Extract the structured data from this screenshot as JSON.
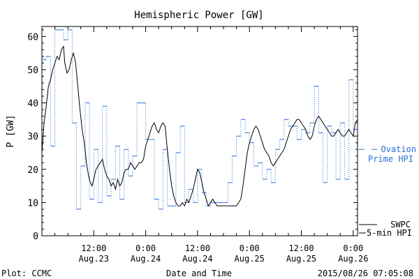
{
  "chart_data": {
    "type": "line",
    "title": "Hemispheric Power [GW]",
    "xlabel": "Date and Time",
    "ylabel": "P [GW]",
    "ylim": [
      0,
      63
    ],
    "xlim": [
      0,
      73
    ],
    "x_unit": "hours since 2015-08-23 00:00 UT",
    "y_ticks": [
      0,
      10,
      20,
      30,
      40,
      50,
      60
    ],
    "x_ticks": [
      {
        "x": 12,
        "time": "12:00",
        "date": "Aug.23"
      },
      {
        "x": 24,
        "time": "0:00",
        "date": "Aug.24"
      },
      {
        "x": 36,
        "time": "12:00",
        "date": "Aug.24"
      },
      {
        "x": 48,
        "time": "0:00",
        "date": "Aug.25"
      },
      {
        "x": 60,
        "time": "12:00",
        "date": "Aug.25"
      },
      {
        "x": 72,
        "time": "0:00",
        "date": "Aug.26"
      }
    ],
    "grid": false,
    "legend_position": "right",
    "series": [
      {
        "name": "SWPC 5-min HPI",
        "label_lines": [
          "SWPC",
          "5-min HPI"
        ],
        "color": "#000000",
        "style": "solid",
        "points": [
          [
            0,
            25
          ],
          [
            0.5,
            34
          ],
          [
            1,
            39
          ],
          [
            1.5,
            45
          ],
          [
            2,
            47
          ],
          [
            2.5,
            50
          ],
          [
            3,
            52
          ],
          [
            3.5,
            54
          ],
          [
            4,
            53
          ],
          [
            4.5,
            56
          ],
          [
            5,
            57
          ],
          [
            5.3,
            52
          ],
          [
            5.8,
            49
          ],
          [
            6.3,
            50
          ],
          [
            6.8,
            53
          ],
          [
            7.3,
            55
          ],
          [
            7.8,
            52
          ],
          [
            8.3,
            45
          ],
          [
            8.8,
            38
          ],
          [
            9.3,
            32
          ],
          [
            9.8,
            28
          ],
          [
            10.3,
            22
          ],
          [
            10.8,
            18
          ],
          [
            11.2,
            16
          ],
          [
            11.6,
            15
          ],
          [
            12,
            17
          ],
          [
            12.5,
            20
          ],
          [
            13,
            21
          ],
          [
            13.5,
            22
          ],
          [
            14,
            23
          ],
          [
            14.5,
            20
          ],
          [
            15,
            18
          ],
          [
            15.5,
            17
          ],
          [
            16,
            15
          ],
          [
            16.5,
            16
          ],
          [
            17,
            14
          ],
          [
            17.5,
            17
          ],
          [
            18,
            15
          ],
          [
            18.5,
            16
          ],
          [
            19,
            19
          ],
          [
            19.5,
            20
          ],
          [
            20,
            20
          ],
          [
            20.5,
            22
          ],
          [
            21,
            21
          ],
          [
            21.5,
            20
          ],
          [
            22,
            21
          ],
          [
            22.5,
            22
          ],
          [
            23,
            22
          ],
          [
            23.5,
            23
          ],
          [
            24,
            27
          ],
          [
            24.5,
            29
          ],
          [
            25,
            31
          ],
          [
            25.5,
            33
          ],
          [
            26,
            34
          ],
          [
            26.5,
            32
          ],
          [
            27,
            31
          ],
          [
            27.5,
            33
          ],
          [
            28,
            34
          ],
          [
            28.5,
            33
          ],
          [
            29,
            26
          ],
          [
            29.5,
            20
          ],
          [
            30,
            15
          ],
          [
            30.5,
            12
          ],
          [
            31,
            10
          ],
          [
            31.5,
            9
          ],
          [
            32,
            9
          ],
          [
            32.5,
            10
          ],
          [
            33,
            9
          ],
          [
            33.5,
            11
          ],
          [
            34,
            10
          ],
          [
            34.5,
            12
          ],
          [
            35,
            14
          ],
          [
            35.5,
            17
          ],
          [
            36,
            20
          ],
          [
            36.5,
            19
          ],
          [
            37,
            16
          ],
          [
            37.5,
            13
          ],
          [
            38,
            11
          ],
          [
            38.5,
            9
          ],
          [
            39,
            10
          ],
          [
            39.5,
            11
          ],
          [
            40,
            10
          ],
          [
            40.5,
            9
          ],
          [
            41,
            9
          ],
          [
            41.5,
            9
          ],
          [
            42,
            9
          ],
          [
            42.5,
            9
          ],
          [
            43,
            9
          ],
          [
            43.5,
            9
          ],
          [
            44,
            9
          ],
          [
            44.5,
            9
          ],
          [
            45,
            9
          ],
          [
            45.5,
            10
          ],
          [
            46,
            11
          ],
          [
            46.5,
            15
          ],
          [
            47,
            20
          ],
          [
            47.5,
            25
          ],
          [
            48,
            28
          ],
          [
            48.5,
            30
          ],
          [
            49,
            32
          ],
          [
            49.5,
            33
          ],
          [
            50,
            32
          ],
          [
            50.5,
            30
          ],
          [
            51,
            28
          ],
          [
            51.5,
            26
          ],
          [
            52,
            25
          ],
          [
            52.5,
            24
          ],
          [
            53,
            22
          ],
          [
            53.5,
            21
          ],
          [
            54,
            22
          ],
          [
            54.5,
            23
          ],
          [
            55,
            24
          ],
          [
            55.5,
            25
          ],
          [
            56,
            26
          ],
          [
            56.5,
            28
          ],
          [
            57,
            30
          ],
          [
            57.5,
            32
          ],
          [
            58,
            33
          ],
          [
            58.5,
            34
          ],
          [
            59,
            35
          ],
          [
            59.5,
            35
          ],
          [
            60,
            34
          ],
          [
            60.5,
            33
          ],
          [
            61,
            32
          ],
          [
            61.5,
            30
          ],
          [
            62,
            29
          ],
          [
            62.5,
            30
          ],
          [
            63,
            33
          ],
          [
            63.5,
            35
          ],
          [
            64,
            36
          ],
          [
            64.5,
            35
          ],
          [
            65,
            34
          ],
          [
            65.5,
            33
          ],
          [
            66,
            32
          ],
          [
            66.5,
            31
          ],
          [
            67,
            30
          ],
          [
            67.5,
            30
          ],
          [
            68,
            31
          ],
          [
            68.5,
            32
          ],
          [
            69,
            31
          ],
          [
            69.5,
            30
          ],
          [
            70,
            30
          ],
          [
            70.5,
            31
          ],
          [
            71,
            32
          ],
          [
            71.5,
            31
          ],
          [
            72,
            30
          ],
          [
            72.5,
            34
          ],
          [
            73,
            35
          ]
        ]
      },
      {
        "name": "Ovation Prime HPI",
        "label_lines": [
          "Ovation",
          "Prime HPI"
        ],
        "color": "#2a6fd6",
        "style": "dotted-step",
        "points": [
          [
            0,
            53
          ],
          [
            1,
            54
          ],
          [
            2,
            27
          ],
          [
            3,
            62
          ],
          [
            4,
            62
          ],
          [
            5,
            59
          ],
          [
            6,
            62
          ],
          [
            7,
            34
          ],
          [
            8,
            8
          ],
          [
            9,
            21
          ],
          [
            10,
            40
          ],
          [
            11,
            11
          ],
          [
            12,
            26
          ],
          [
            13,
            10
          ],
          [
            14,
            39
          ],
          [
            15,
            12
          ],
          [
            16,
            17
          ],
          [
            17,
            27
          ],
          [
            18,
            11
          ],
          [
            19,
            26
          ],
          [
            20,
            18
          ],
          [
            21,
            24
          ],
          [
            22,
            40
          ],
          [
            23,
            40
          ],
          [
            24,
            29
          ],
          [
            25,
            29
          ],
          [
            26,
            11
          ],
          [
            27,
            8
          ],
          [
            28,
            26
          ],
          [
            29,
            9
          ],
          [
            30,
            9
          ],
          [
            31,
            25
          ],
          [
            32,
            33
          ],
          [
            33,
            10
          ],
          [
            34,
            14
          ],
          [
            35,
            10
          ],
          [
            36,
            20
          ],
          [
            37,
            13
          ],
          [
            38,
            9
          ],
          [
            39,
            10
          ],
          [
            40,
            10
          ],
          [
            41,
            10
          ],
          [
            42,
            10
          ],
          [
            43,
            16
          ],
          [
            44,
            24
          ],
          [
            45,
            30
          ],
          [
            46,
            35
          ],
          [
            47,
            31
          ],
          [
            48,
            28
          ],
          [
            49,
            21
          ],
          [
            50,
            22
          ],
          [
            51,
            17
          ],
          [
            52,
            20
          ],
          [
            53,
            16
          ],
          [
            54,
            26
          ],
          [
            55,
            29
          ],
          [
            56,
            35
          ],
          [
            57,
            33
          ],
          [
            58,
            33
          ],
          [
            59,
            29
          ],
          [
            60,
            32
          ],
          [
            61,
            31
          ],
          [
            62,
            34
          ],
          [
            63,
            45
          ],
          [
            64,
            31
          ],
          [
            65,
            16
          ],
          [
            66,
            33
          ],
          [
            67,
            31
          ],
          [
            68,
            17
          ],
          [
            69,
            34
          ],
          [
            70,
            17
          ],
          [
            71,
            47
          ],
          [
            72,
            32
          ],
          [
            73,
            32
          ]
        ]
      }
    ]
  },
  "footer": {
    "left": "Plot: CCMC",
    "right": "2015/08/26 07:05:08"
  },
  "colors": {
    "axis": "#000000",
    "ovation": "#2a6fd6",
    "swpc": "#000000"
  }
}
